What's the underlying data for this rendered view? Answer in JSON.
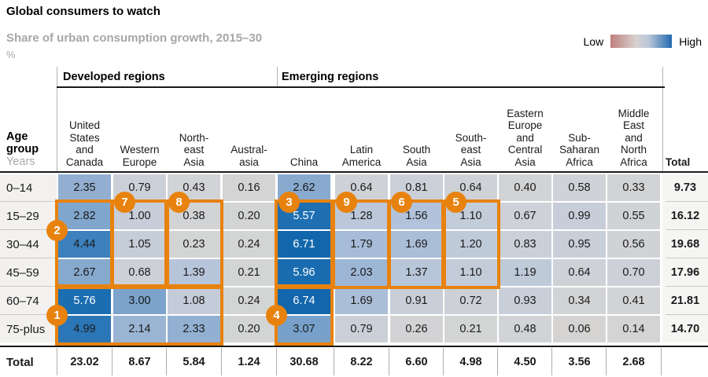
{
  "title": "Global consumers to watch",
  "subtitle": "Share of urban consumption growth, 2015–30",
  "unit": "%",
  "legend": {
    "low": "Low",
    "high": "High"
  },
  "table": {
    "age_header": "Age\ngroup",
    "age_subheader": "Years",
    "groups": [
      {
        "label": "Developed regions"
      },
      {
        "label": "Emerging regions"
      }
    ],
    "columns_display": [
      "United\nStates\nand\nCanada",
      "Western\nEurope",
      "North-\neast\nAsia",
      "Austral-\nasia",
      "China",
      "Latin\nAmerica",
      "South\nAsia",
      "South-\neast\nAsia",
      "Eastern\nEurope\nand\nCentral\nAsia",
      "Sub-\nSaharan\nAfrica",
      "Middle\nEast\nand\nNorth\nAfrica"
    ],
    "total_header": "Total",
    "totals_row_label": "Total"
  },
  "chart_data": {
    "type": "heatmap",
    "title": "Global consumers to watch",
    "subtitle": "Share of urban consumption growth, 2015–30",
    "unit": "%",
    "rows": [
      "0–14",
      "15–29",
      "30–44",
      "45–59",
      "60–74",
      "75-plus"
    ],
    "columns": [
      "United States and Canada",
      "Western Europe",
      "North-east Asia",
      "Austral-asia",
      "China",
      "Latin America",
      "South Asia",
      "South-east Asia",
      "Eastern Europe and Central Asia",
      "Sub-Saharan Africa",
      "Middle East and North Africa"
    ],
    "column_groups": [
      {
        "label": "Developed regions",
        "columns": [
          0,
          3
        ]
      },
      {
        "label": "Emerging regions",
        "columns": [
          4,
          10
        ]
      }
    ],
    "values": [
      [
        2.35,
        0.79,
        0.43,
        0.16,
        2.62,
        0.64,
        0.81,
        0.64,
        0.4,
        0.58,
        0.33
      ],
      [
        2.82,
        1.0,
        0.38,
        0.2,
        5.57,
        1.28,
        1.56,
        1.1,
        0.67,
        0.99,
        0.55
      ],
      [
        4.44,
        1.05,
        0.23,
        0.24,
        6.71,
        1.79,
        1.69,
        1.2,
        0.83,
        0.95,
        0.56
      ],
      [
        2.67,
        0.68,
        1.39,
        0.21,
        5.96,
        2.03,
        1.37,
        1.1,
        1.19,
        0.64,
        0.7
      ],
      [
        5.76,
        3.0,
        1.08,
        0.24,
        6.74,
        1.69,
        0.91,
        0.72,
        0.93,
        0.34,
        0.41
      ],
      [
        4.99,
        2.14,
        2.33,
        0.2,
        3.07,
        0.79,
        0.26,
        0.21,
        0.48,
        0.06,
        0.14
      ]
    ],
    "row_totals": [
      9.73,
      16.12,
      19.68,
      17.96,
      21.81,
      14.7
    ],
    "column_totals": [
      23.02,
      8.67,
      5.84,
      1.24,
      30.68,
      8.22,
      6.6,
      4.98,
      4.5,
      3.56,
      2.68
    ],
    "legend": {
      "low_label": "Low",
      "high_label": "High",
      "colors": [
        "#bf7f7e",
        "#d6d2cf",
        "#2268ae"
      ]
    }
  },
  "heatmap": {
    "stops": [
      [
        0,
        "#d5d4d3"
      ],
      [
        0.5,
        "#d1d3d6"
      ],
      [
        1,
        "#c7ced9"
      ],
      [
        1.5,
        "#b3c3da"
      ],
      [
        2,
        "#9fb7d6"
      ],
      [
        2.5,
        "#8caccf"
      ],
      [
        3,
        "#7ba3cc"
      ],
      [
        3.6,
        "#5c90c4"
      ],
      [
        4.5,
        "#3a7fbd"
      ],
      [
        5,
        "#2b76b6"
      ],
      [
        5.6,
        "#1c6fb2"
      ],
      [
        6.8,
        "#1166ab"
      ]
    ],
    "white_text_threshold": 5.3
  },
  "annotations": {
    "accent_color": "#e8820e",
    "boxes": [
      {
        "cols": [
          0,
          0
        ],
        "rows": [
          1,
          3
        ]
      },
      {
        "cols": [
          1,
          1
        ],
        "rows": [
          1,
          3
        ]
      },
      {
        "cols": [
          2,
          2
        ],
        "rows": [
          1,
          3
        ]
      },
      {
        "cols": [
          4,
          4
        ],
        "rows": [
          1,
          3
        ]
      },
      {
        "cols": [
          5,
          5
        ],
        "rows": [
          1,
          3
        ]
      },
      {
        "cols": [
          6,
          6
        ],
        "rows": [
          1,
          3
        ]
      },
      {
        "cols": [
          7,
          7
        ],
        "rows": [
          1,
          3
        ]
      },
      {
        "cols": [
          0,
          2
        ],
        "rows": [
          4,
          5
        ]
      },
      {
        "cols": [
          4,
          4
        ],
        "rows": [
          4,
          5
        ]
      }
    ],
    "badges": [
      {
        "label": "1",
        "col": 0,
        "row": 5,
        "anchor": "left"
      },
      {
        "label": "2",
        "col": 0,
        "row": 2,
        "anchor": "left"
      },
      {
        "label": "3",
        "col": 4,
        "row": 1,
        "anchor": "top"
      },
      {
        "label": "4",
        "col": 4,
        "row": 5,
        "anchor": "left"
      },
      {
        "label": "5",
        "col": 7,
        "row": 1,
        "anchor": "top"
      },
      {
        "label": "6",
        "col": 6,
        "row": 1,
        "anchor": "top"
      },
      {
        "label": "7",
        "col": 1,
        "row": 1,
        "anchor": "top"
      },
      {
        "label": "8",
        "col": 2,
        "row": 1,
        "anchor": "top"
      },
      {
        "label": "9",
        "col": 5,
        "row": 1,
        "anchor": "top"
      }
    ]
  }
}
